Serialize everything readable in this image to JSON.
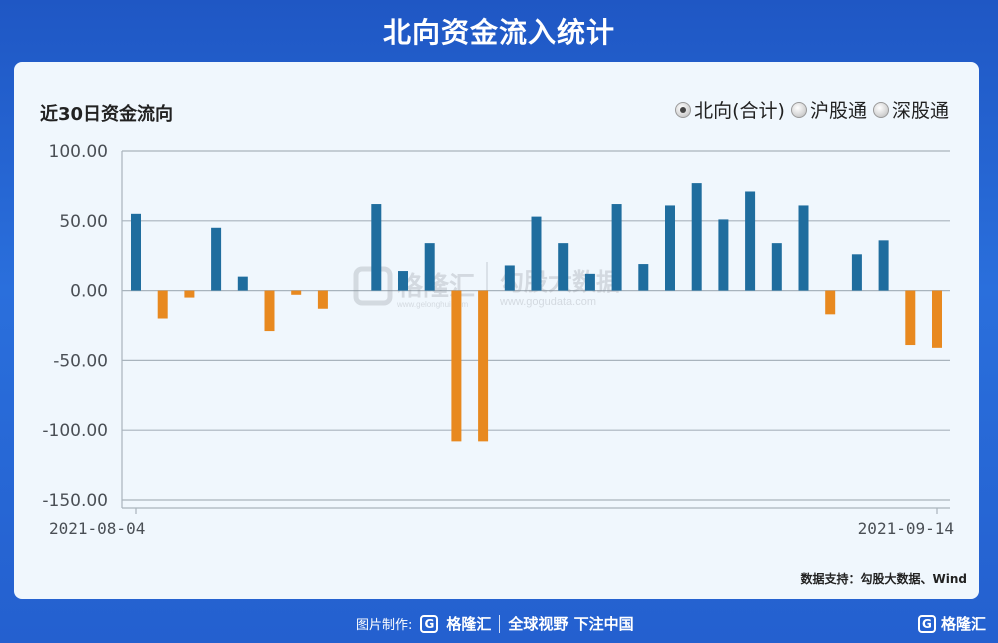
{
  "page_title": "北向资金流入统计",
  "chart_title": "近30日资金流向",
  "legend": [
    {
      "label": "北向(合计)",
      "checked": true
    },
    {
      "label": "沪股通",
      "checked": false
    },
    {
      "label": "深股通",
      "checked": false
    }
  ],
  "source": "数据支持：勾股大数据、Wind",
  "watermark": {
    "brand": "格隆汇",
    "brand_url": "www.gelonghui.com",
    "partner": "勾股大数据",
    "partner_url": "www.gogudata.com"
  },
  "footer": {
    "label": "图片制作:",
    "brand": "格隆汇",
    "slogan": "全球视野 下注中国",
    "corner_brand": "格隆汇"
  },
  "colors": {
    "positive": "#1f6d9e",
    "negative": "#e8891f",
    "grid": "#a9b4bd"
  },
  "chart_data": {
    "type": "bar",
    "title": "近30日资金流向",
    "xlabel": "",
    "ylabel": "",
    "x_start_label": "2021-08-04",
    "x_end_label": "2021-09-14",
    "ylim": [
      -150,
      100
    ],
    "yticks": [
      "100.00",
      "50.00",
      "0.00",
      "-50.00",
      "-100.00",
      "-150.00"
    ],
    "ytick_values": [
      100,
      50,
      0,
      -50,
      -100,
      -150
    ],
    "grid": true,
    "values": [
      55.0,
      -20.0,
      -5.0,
      45.0,
      10.0,
      -29.0,
      -3.0,
      -13.0,
      null,
      62.0,
      14.0,
      34.0,
      -108.0,
      -108.0,
      18.0,
      53.0,
      34.0,
      12.0,
      62.0,
      19.0,
      61.0,
      77.0,
      51.0,
      71.0,
      34.0,
      61.0,
      -17.0,
      26.0,
      36.0,
      -39.0,
      -41.0
    ]
  }
}
